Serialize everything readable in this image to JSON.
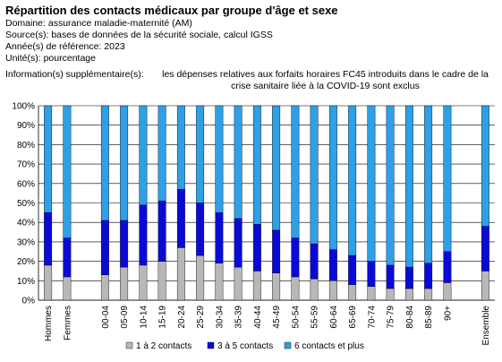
{
  "header": {
    "title": "Répartition des contacts médicaux par groupe d'âge et sexe",
    "domain": "Domaine: assurance maladie-maternité (AM)",
    "source": "Source(s): bases de données de la sécurité sociale, calcul IGSS",
    "year": "Année(s) de référence: 2023",
    "unit": "Unité(s):   pourcentage",
    "info_label": "Information(s) supplémentaire(s):",
    "info_text": "les dépenses relatives aux forfaits horaires FC45 introduits dans le cadre de la crise sanitaire liée à la COVID-19 sont exclus"
  },
  "chart_data": {
    "type": "bar",
    "stacked": true,
    "percent": true,
    "categories": [
      "Hommes",
      "Femmes",
      "00-04",
      "05-09",
      "10-14",
      "15-19",
      "20-24",
      "25-29",
      "30-34",
      "35-39",
      "40-44",
      "45-49",
      "50-54",
      "55-59",
      "60-64",
      "65-69",
      "70-74",
      "75-79",
      "80-84",
      "85-89",
      "90+",
      "Ensemble"
    ],
    "series": [
      {
        "name": "1 à 2 contacts",
        "color": "#b8b8b8",
        "values": [
          18,
          12,
          13,
          17,
          18,
          20,
          27,
          23,
          19,
          17,
          15,
          14,
          12,
          11,
          10,
          8,
          7,
          6,
          6,
          6,
          9,
          15
        ]
      },
      {
        "name": "3 à 5 contacts",
        "color": "#0a0ad6",
        "values": [
          27,
          20,
          28,
          24,
          31,
          31,
          30,
          27,
          26,
          25,
          24,
          22,
          20,
          18,
          16,
          15,
          13,
          12,
          11,
          13,
          16,
          23
        ]
      },
      {
        "name": "6 contacts et plus",
        "color": "#2f9fe6",
        "values": [
          55,
          68,
          59,
          59,
          51,
          49,
          43,
          50,
          55,
          58,
          61,
          64,
          68,
          71,
          74,
          77,
          80,
          82,
          83,
          81,
          75,
          62
        ]
      }
    ],
    "ylim": [
      0,
      100
    ],
    "yticks": [
      "0%",
      "10%",
      "20%",
      "30%",
      "40%",
      "50%",
      "60%",
      "70%",
      "80%",
      "90%",
      "100%"
    ],
    "grid": true,
    "legend": "bottom"
  }
}
